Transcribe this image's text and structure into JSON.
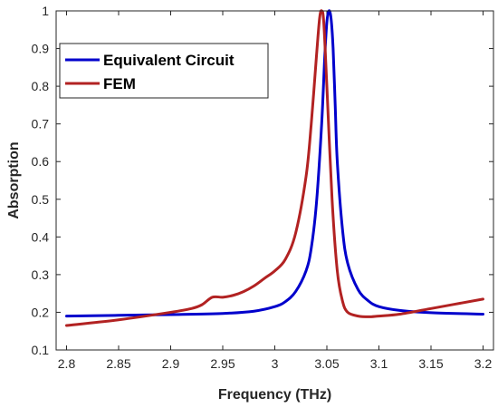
{
  "chart_data": {
    "type": "line",
    "title": "",
    "xlabel": "Frequency (THz)",
    "ylabel": "Absorption",
    "xlim": [
      2.79,
      3.21
    ],
    "ylim": [
      0.1,
      1.0
    ],
    "xticks": [
      2.8,
      2.85,
      2.9,
      2.95,
      3.0,
      3.05,
      3.1,
      3.15,
      3.2
    ],
    "xtick_labels": [
      "2.8",
      "2.85",
      "2.9",
      "2.95",
      "3",
      "3.05",
      "3.1",
      "3.15",
      "3.2"
    ],
    "yticks": [
      0.1,
      0.2,
      0.3,
      0.4,
      0.5,
      0.6,
      0.7,
      0.8,
      0.9,
      1.0
    ],
    "ytick_labels": [
      "0.1",
      "0.2",
      "0.3",
      "0.4",
      "0.5",
      "0.6",
      "0.7",
      "0.8",
      "0.9",
      "1"
    ],
    "grid": false,
    "legend_position": "top-left",
    "series": [
      {
        "name": "Equivalent Circuit",
        "color": "#0000cc",
        "x": [
          2.8,
          2.85,
          2.9,
          2.95,
          2.98,
          3.0,
          3.01,
          3.02,
          3.03,
          3.035,
          3.04,
          3.045,
          3.048,
          3.05,
          3.052,
          3.054,
          3.056,
          3.058,
          3.06,
          3.065,
          3.07,
          3.08,
          3.09,
          3.1,
          3.12,
          3.15,
          3.2
        ],
        "y": [
          0.19,
          0.192,
          0.194,
          0.197,
          0.203,
          0.215,
          0.228,
          0.255,
          0.31,
          0.37,
          0.49,
          0.7,
          0.88,
          0.97,
          1.0,
          0.98,
          0.9,
          0.75,
          0.6,
          0.42,
          0.33,
          0.26,
          0.23,
          0.215,
          0.205,
          0.199,
          0.195
        ]
      },
      {
        "name": "FEM",
        "color": "#b22222",
        "x": [
          2.8,
          2.85,
          2.9,
          2.92,
          2.93,
          2.94,
          2.95,
          2.96,
          2.97,
          2.98,
          2.99,
          3.0,
          3.01,
          3.02,
          3.03,
          3.035,
          3.04,
          3.043,
          3.045,
          3.047,
          3.05,
          3.055,
          3.06,
          3.065,
          3.07,
          3.08,
          3.09,
          3.1,
          3.12,
          3.15,
          3.2
        ],
        "y": [
          0.165,
          0.18,
          0.2,
          0.21,
          0.22,
          0.24,
          0.24,
          0.245,
          0.255,
          0.27,
          0.29,
          0.31,
          0.34,
          0.41,
          0.56,
          0.7,
          0.88,
          0.98,
          1.0,
          0.97,
          0.8,
          0.5,
          0.31,
          0.23,
          0.2,
          0.19,
          0.188,
          0.19,
          0.195,
          0.21,
          0.235
        ]
      }
    ]
  }
}
